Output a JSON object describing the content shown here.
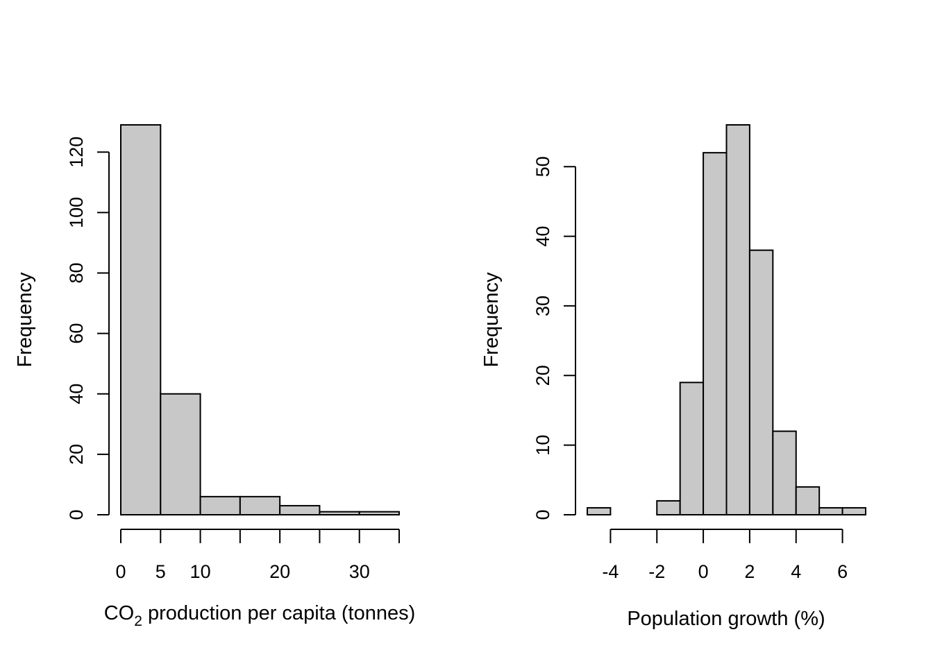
{
  "chart_data": [
    {
      "type": "bar",
      "title": "",
      "xlabel_main": "CO",
      "xlabel_sub": "2",
      "xlabel_rest": " production per capita (tonnes)",
      "ylabel": "Frequency",
      "bin_edges": [
        0,
        5,
        10,
        15,
        20,
        25,
        30,
        35
      ],
      "values": [
        129,
        40,
        6,
        6,
        3,
        1,
        1
      ],
      "xlim": [
        0,
        35
      ],
      "ylim": [
        0,
        129
      ],
      "x_ticks": [
        0,
        5,
        10,
        15,
        20,
        25,
        30,
        35
      ],
      "x_tick_labels": [
        "0",
        "5",
        "10",
        "",
        "20",
        "",
        "30",
        ""
      ],
      "y_ticks": [
        0,
        20,
        40,
        60,
        80,
        100,
        120
      ],
      "y_tick_labels": [
        "0",
        "20",
        "40",
        "60",
        "80",
        "100",
        "120"
      ],
      "bar_color": "#c8c8c8",
      "grid": false
    },
    {
      "type": "bar",
      "title": "",
      "xlabel": "Population growth (%)",
      "ylabel": "Frequency",
      "bin_edges": [
        -5,
        -4,
        -3,
        -2,
        -1,
        0,
        1,
        2,
        3,
        4,
        5,
        6,
        7
      ],
      "values": [
        1,
        0,
        0,
        2,
        19,
        52,
        56,
        38,
        12,
        4,
        1,
        1
      ],
      "xlim": [
        -5,
        7
      ],
      "ylim": [
        0,
        56
      ],
      "x_ticks": [
        -4,
        -2,
        0,
        2,
        4,
        6
      ],
      "x_tick_labels": [
        "-4",
        "-2",
        "0",
        "2",
        "4",
        "6"
      ],
      "y_ticks": [
        0,
        10,
        20,
        30,
        40,
        50
      ],
      "y_tick_labels": [
        "0",
        "10",
        "20",
        "30",
        "40",
        "50"
      ],
      "bar_color": "#c8c8c8",
      "grid": false
    }
  ]
}
